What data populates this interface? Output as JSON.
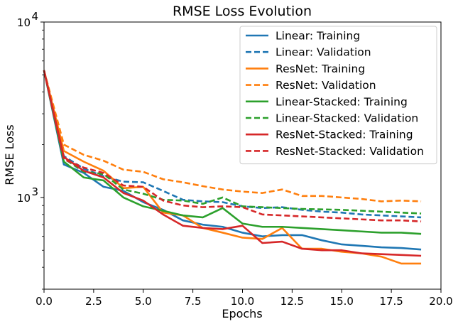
{
  "chart_data": {
    "type": "line",
    "title": "RMSE Loss Evolution",
    "xlabel": "Epochs",
    "ylabel": "RMSE Loss",
    "xlim": [
      0,
      20
    ],
    "ylim": [
      300,
      10000
    ],
    "yscale": "log",
    "grid": false,
    "legend_position": "top-right",
    "x_ticks": [
      "0.0",
      "2.5",
      "5.0",
      "7.5",
      "10.0",
      "12.5",
      "15.0",
      "17.5",
      "20.0"
    ],
    "y_ticks": [
      {
        "value": 1000,
        "base": "10",
        "exp": "3"
      },
      {
        "value": 10000,
        "base": "10",
        "exp": "4"
      }
    ],
    "x": [
      0,
      1,
      2,
      3,
      4,
      5,
      6,
      7,
      8,
      9,
      10,
      11,
      12,
      13,
      14,
      15,
      16,
      17,
      18,
      19
    ],
    "series": [
      {
        "name": "Linear: Training",
        "color": "#1f77b4",
        "dash": false,
        "values": [
          5300,
          1540,
          1380,
          1150,
          1090,
          940,
          850,
          740,
          700,
          680,
          630,
          600,
          610,
          610,
          570,
          540,
          530,
          520,
          515,
          505
        ]
      },
      {
        "name": "Linear: Validation",
        "color": "#1f77b4",
        "dash": true,
        "values": [
          5300,
          1720,
          1460,
          1320,
          1230,
          1220,
          1090,
          970,
          950,
          940,
          890,
          870,
          880,
          850,
          830,
          820,
          800,
          790,
          780,
          770
        ]
      },
      {
        "name": "ResNet: Training",
        "color": "#ff7f0e",
        "dash": false,
        "values": [
          5300,
          1840,
          1600,
          1420,
          1130,
          1150,
          820,
          790,
          670,
          630,
          590,
          580,
          670,
          510,
          510,
          490,
          480,
          460,
          420,
          420
        ]
      },
      {
        "name": "ResNet: Validation",
        "color": "#ff7f0e",
        "dash": true,
        "values": [
          5300,
          2000,
          1750,
          1620,
          1440,
          1400,
          1270,
          1220,
          1160,
          1110,
          1080,
          1060,
          1110,
          1020,
          1020,
          1000,
          980,
          950,
          960,
          950
        ]
      },
      {
        "name": "Linear-Stacked: Training",
        "color": "#2ca02c",
        "dash": false,
        "values": [
          5300,
          1600,
          1300,
          1250,
          1000,
          890,
          840,
          790,
          770,
          870,
          710,
          680,
          680,
          670,
          660,
          650,
          640,
          630,
          630,
          620
        ]
      },
      {
        "name": "Linear-Stacked: Validation",
        "color": "#2ca02c",
        "dash": true,
        "values": [
          5300,
          1670,
          1400,
          1360,
          1110,
          1050,
          970,
          960,
          920,
          1000,
          890,
          880,
          870,
          860,
          855,
          850,
          840,
          830,
          820,
          810
        ]
      },
      {
        "name": "ResNet-Stacked: Training",
        "color": "#d62728",
        "dash": false,
        "values": [
          5300,
          1700,
          1420,
          1300,
          1060,
          960,
          800,
          690,
          670,
          660,
          690,
          550,
          560,
          510,
          500,
          500,
          480,
          475,
          470,
          465
        ]
      },
      {
        "name": "ResNet-Stacked: Validation",
        "color": "#d62728",
        "dash": true,
        "values": [
          5300,
          1650,
          1480,
          1380,
          1170,
          1150,
          960,
          900,
          880,
          890,
          880,
          800,
          790,
          780,
          770,
          760,
          750,
          740,
          740,
          730
        ]
      }
    ]
  }
}
